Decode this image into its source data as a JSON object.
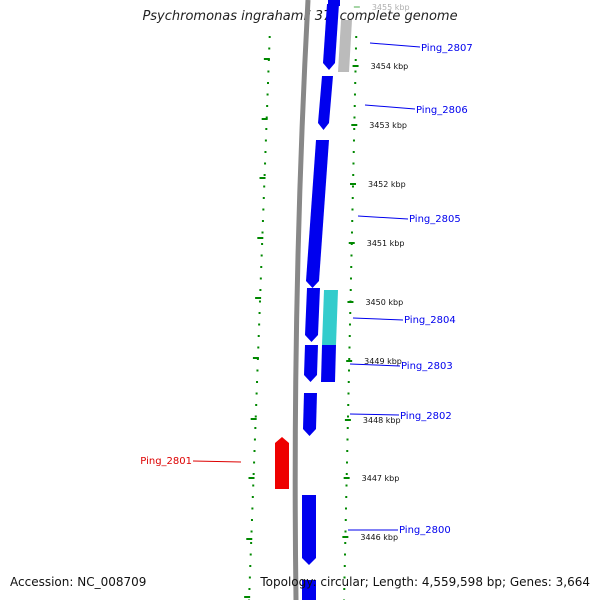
{
  "title": "Psychromonas ingrahamii 37, complete genome",
  "footer": {
    "accession": "Accession: NC_008709",
    "summary": "Topology: circular; Length: 4,559,598 bp; Genes: 3,664"
  },
  "ticks": [
    {
      "label": "3455 kbp",
      "faded": true
    },
    {
      "label": "3454 kbp"
    },
    {
      "label": "3453 kbp"
    },
    {
      "label": "3452 kbp"
    },
    {
      "label": "3451 kbp"
    },
    {
      "label": "3450 kbp"
    },
    {
      "label": "3449 kbp"
    },
    {
      "label": "3448 kbp"
    },
    {
      "label": "3447 kbp"
    },
    {
      "label": "3446 kbp"
    }
  ],
  "genes": [
    {
      "label": "Ping_2807",
      "color": "#0000ee"
    },
    {
      "label": "Ping_2806",
      "color": "#0000ee"
    },
    {
      "label": "Ping_2805",
      "color": "#0000ee"
    },
    {
      "label": "Ping_2804",
      "color": "#0000ee"
    },
    {
      "label": "Ping_2803",
      "color": "#0000ee"
    },
    {
      "label": "Ping_2802",
      "color": "#0000ee"
    },
    {
      "label": "Ping_2801",
      "color": "#dd0000"
    },
    {
      "label": "Ping_2800",
      "color": "#0000ee"
    }
  ],
  "colors": {
    "forward_gene": "#0000ee",
    "reverse_gene": "#ee0000",
    "highlight_gene": "#33cccc",
    "pseudo_gene": "#bbbbbb",
    "tick": "#008800",
    "backbone": "#888888"
  }
}
